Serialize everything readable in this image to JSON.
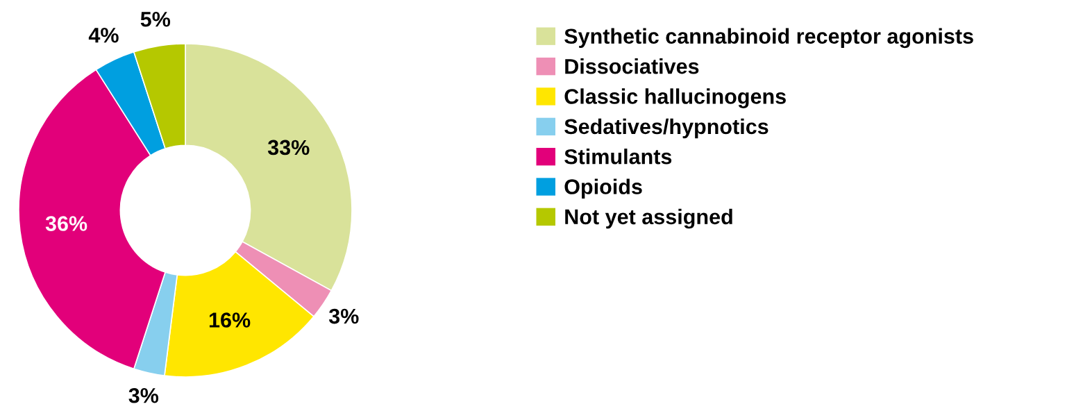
{
  "chart_data": {
    "type": "donut",
    "categories": [
      "Synthetic cannabinoid receptor agonists",
      "Dissociatives",
      "Classic hallucinogens",
      "Sedatives/hypnotics",
      "Stimulants",
      "Opioids",
      "Not yet assigned"
    ],
    "values": [
      33,
      3,
      16,
      3,
      36,
      4,
      5
    ],
    "colors": [
      "#d9e29a",
      "#ee8fb5",
      "#ffe600",
      "#87cfee",
      "#e2007a",
      "#009fe0",
      "#b5c800"
    ],
    "value_labels": [
      "33%",
      "3%",
      "16%",
      "3%",
      "36%",
      "4%",
      "5%"
    ],
    "legend": "right"
  }
}
